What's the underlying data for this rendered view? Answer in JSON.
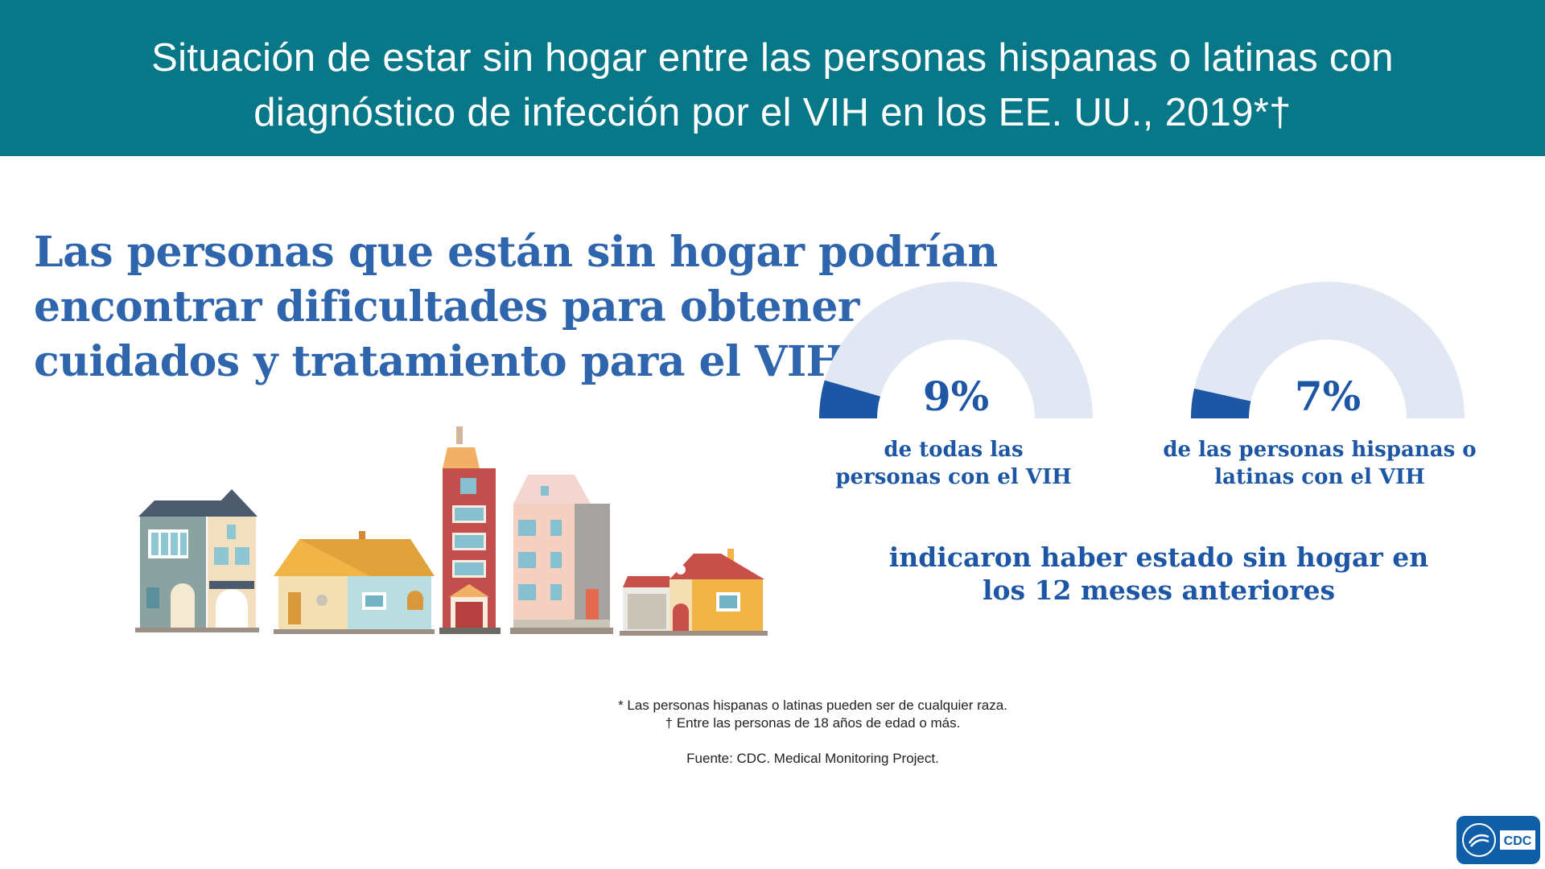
{
  "header": {
    "title_line1": "Situación de estar sin hogar entre las personas hispanas o latinas con",
    "title_line2": "diagnóstico de infección por el VIH en los EE. UU., 2019*†"
  },
  "headline": {
    "line1": "Las personas que están sin hogar podrían",
    "line2": "encontrar dificultades para obtener",
    "line3": "cuidados y tratamiento para el VIH."
  },
  "chart_data": {
    "type": "gauge",
    "series": [
      {
        "value": 9,
        "value_label": "9%",
        "caption_line1": "de todas las",
        "caption_line2": "personas con el VIH"
      },
      {
        "value": 7,
        "value_label": "7%",
        "caption_line1": "de las personas hispanas o",
        "caption_line2": "latinas con el VIH"
      }
    ],
    "range": [
      0,
      100
    ],
    "note_line1": "indicaron haber estado sin hogar en",
    "note_line2": "los 12 meses anteriores"
  },
  "footnotes": {
    "f1": "* Las personas hispanas o latinas pueden ser de cualquier raza.",
    "f2": "† Entre las personas de 18 años de edad o más.",
    "source": "Fuente: CDC. Medical Monitoring Project."
  },
  "logo": {
    "text": "CDC"
  },
  "colors": {
    "banner": "#087889",
    "headline": "#2f65ac",
    "gauge_fill": "#1c56a5",
    "gauge_track": "#e1e8f3"
  }
}
